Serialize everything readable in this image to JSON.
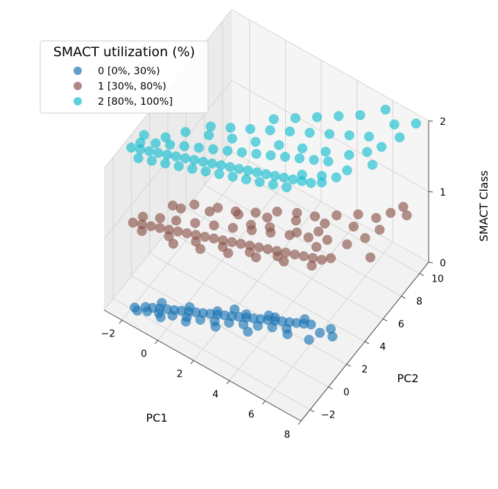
{
  "chart_data": {
    "type": "scatter3d",
    "title": "",
    "xlabel": "PC1",
    "ylabel": "PC2",
    "zlabel": "SMACT Class",
    "xlim": [
      -3,
      8
    ],
    "ylim": [
      -3,
      11
    ],
    "zlim": [
      0,
      2
    ],
    "x_ticks": [
      "−2",
      "0",
      "2",
      "4",
      "6",
      "8"
    ],
    "y_ticks": [
      "−2",
      "0",
      "2",
      "4",
      "6",
      "8",
      "10"
    ],
    "z_ticks": [
      "0",
      "1",
      "2"
    ],
    "grid": true,
    "legend": {
      "title": "SMACT utilization (%)",
      "placement": "top-left",
      "entries": [
        {
          "label": "0 [0%, 30%)",
          "color": "#1f77b4"
        },
        {
          "label": "1 [30%, 80%)",
          "color": "#8c564b"
        },
        {
          "label": "2 [80%, 100%]",
          "color": "#17becf"
        }
      ]
    },
    "series": [
      {
        "name": "0 [0%, 30%)",
        "z": 0,
        "color": "#1f77b4",
        "points": [
          [
            -1.9,
            -1.8
          ],
          [
            -1.5,
            -1.4
          ],
          [
            -1.2,
            -1.2
          ],
          [
            -0.9,
            -1.0
          ],
          [
            -0.6,
            -0.8
          ],
          [
            -0.3,
            -0.6
          ],
          [
            0.0,
            -0.4
          ],
          [
            0.3,
            -0.2
          ],
          [
            0.6,
            0.0
          ],
          [
            0.9,
            0.2
          ],
          [
            1.2,
            0.4
          ],
          [
            1.5,
            0.6
          ],
          [
            1.8,
            0.8
          ],
          [
            2.1,
            1.0
          ],
          [
            2.4,
            1.2
          ],
          [
            2.7,
            1.4
          ],
          [
            3.0,
            1.6
          ],
          [
            3.3,
            1.8
          ],
          [
            3.6,
            2.0
          ],
          [
            3.9,
            2.2
          ],
          [
            4.2,
            2.4
          ],
          [
            4.5,
            2.6
          ],
          [
            4.8,
            2.8
          ],
          [
            5.1,
            3.0
          ],
          [
            5.4,
            3.2
          ],
          [
            -1.7,
            -1.9
          ],
          [
            -1.3,
            -1.6
          ],
          [
            -0.8,
            -1.3
          ],
          [
            -0.2,
            -1.0
          ],
          [
            0.4,
            -0.6
          ],
          [
            1.0,
            -0.3
          ],
          [
            1.6,
            0.1
          ],
          [
            2.2,
            0.5
          ],
          [
            2.8,
            0.9
          ],
          [
            3.4,
            1.3
          ],
          [
            4.0,
            1.7
          ],
          [
            4.6,
            2.1
          ],
          [
            -1.0,
            -0.6
          ],
          [
            0.2,
            0.1
          ],
          [
            1.4,
            0.8
          ],
          [
            2.6,
            1.6
          ],
          [
            3.8,
            2.4
          ],
          [
            5.0,
            3.3
          ],
          [
            6.0,
            3.0
          ],
          [
            6.3,
            3.6
          ],
          [
            6.6,
            3.2
          ],
          [
            5.8,
            2.2
          ],
          [
            4.8,
            1.8
          ],
          [
            3.2,
            0.6
          ],
          [
            1.8,
            -0.2
          ],
          [
            0.5,
            -0.9
          ],
          [
            -0.6,
            -1.5
          ],
          [
            2.0,
            1.5
          ],
          [
            3.5,
            2.3
          ]
        ]
      },
      {
        "name": "1 [30%, 80%)",
        "z": 1,
        "color": "#8c564b",
        "points": [
          [
            -2.4,
            -1.0
          ],
          [
            -2.0,
            -0.8
          ],
          [
            -1.6,
            -0.6
          ],
          [
            -1.2,
            -0.4
          ],
          [
            -0.8,
            -0.2
          ],
          [
            -0.4,
            0.0
          ],
          [
            0.0,
            0.2
          ],
          [
            0.4,
            0.4
          ],
          [
            0.8,
            0.6
          ],
          [
            1.2,
            0.8
          ],
          [
            1.6,
            1.0
          ],
          [
            2.0,
            1.2
          ],
          [
            2.4,
            1.4
          ],
          [
            2.8,
            1.6
          ],
          [
            3.2,
            1.8
          ],
          [
            3.6,
            2.0
          ],
          [
            4.0,
            2.2
          ],
          [
            4.4,
            2.4
          ],
          [
            4.8,
            2.6
          ],
          [
            5.2,
            2.8
          ],
          [
            5.6,
            3.0
          ],
          [
            6.0,
            3.2
          ],
          [
            -2.2,
            -0.3
          ],
          [
            -1.5,
            0.2
          ],
          [
            -0.8,
            0.6
          ],
          [
            0.0,
            1.1
          ],
          [
            0.8,
            1.6
          ],
          [
            1.6,
            2.1
          ],
          [
            2.4,
            2.6
          ],
          [
            3.2,
            3.1
          ],
          [
            4.0,
            3.6
          ],
          [
            4.8,
            4.1
          ],
          [
            5.6,
            4.6
          ],
          [
            -1.0,
            1.5
          ],
          [
            0.2,
            2.3
          ],
          [
            1.4,
            3.1
          ],
          [
            2.6,
            3.9
          ],
          [
            3.8,
            4.7
          ],
          [
            5.0,
            5.5
          ],
          [
            6.2,
            6.3
          ],
          [
            -0.2,
            -0.9
          ],
          [
            1.0,
            -0.3
          ],
          [
            2.2,
            0.4
          ],
          [
            3.4,
            1.1
          ],
          [
            4.6,
            1.8
          ],
          [
            5.8,
            2.5
          ],
          [
            -1.8,
            -1.2
          ],
          [
            -0.6,
            -0.6
          ],
          [
            0.6,
            0.0
          ],
          [
            1.8,
            0.6
          ],
          [
            3.0,
            1.2
          ],
          [
            4.2,
            1.9
          ],
          [
            5.4,
            3.8
          ],
          [
            6.5,
            5.0
          ],
          [
            7.0,
            6.0
          ],
          [
            7.3,
            7.0
          ],
          [
            6.8,
            7.6
          ],
          [
            7.2,
            8.4
          ],
          [
            7.5,
            9.2
          ],
          [
            6.0,
            7.2
          ],
          [
            5.2,
            6.4
          ],
          [
            4.4,
            5.6
          ],
          [
            3.6,
            5.2
          ],
          [
            2.8,
            4.6
          ],
          [
            2.0,
            3.8
          ],
          [
            1.2,
            3.2
          ],
          [
            0.4,
            2.8
          ],
          [
            -0.6,
            2.2
          ],
          [
            -1.4,
            1.4
          ],
          [
            7.8,
            5.0
          ],
          [
            7.9,
            8.8
          ],
          [
            6.3,
            3.6
          ],
          [
            5.0,
            4.8
          ],
          [
            4.2,
            4.0
          ],
          [
            3.0,
            3.4
          ],
          [
            2.2,
            2.9
          ]
        ]
      },
      {
        "name": "2 [80%, 100%]",
        "z": 2,
        "color": "#17becf",
        "points": [
          [
            -2.6,
            -0.8
          ],
          [
            -2.2,
            -0.6
          ],
          [
            -1.8,
            -0.4
          ],
          [
            -1.4,
            -0.2
          ],
          [
            -1.0,
            0.0
          ],
          [
            -0.6,
            0.2
          ],
          [
            -0.2,
            0.4
          ],
          [
            0.2,
            0.6
          ],
          [
            0.6,
            0.8
          ],
          [
            1.0,
            1.0
          ],
          [
            1.4,
            1.2
          ],
          [
            1.8,
            1.4
          ],
          [
            2.2,
            1.6
          ],
          [
            2.6,
            1.8
          ],
          [
            3.0,
            2.0
          ],
          [
            3.4,
            2.2
          ],
          [
            3.8,
            2.4
          ],
          [
            4.2,
            2.6
          ],
          [
            4.6,
            2.8
          ],
          [
            5.0,
            3.0
          ],
          [
            5.4,
            3.2
          ],
          [
            -2.4,
            -0.2
          ],
          [
            -1.8,
            0.3
          ],
          [
            -1.2,
            0.7
          ],
          [
            -0.6,
            1.1
          ],
          [
            0.0,
            1.5
          ],
          [
            0.6,
            1.9
          ],
          [
            1.2,
            2.3
          ],
          [
            1.8,
            2.7
          ],
          [
            2.4,
            3.1
          ],
          [
            3.0,
            3.5
          ],
          [
            3.6,
            3.9
          ],
          [
            4.2,
            4.3
          ],
          [
            4.8,
            4.7
          ],
          [
            5.4,
            5.1
          ],
          [
            -2.0,
            -1.2
          ],
          [
            -1.4,
            -0.9
          ],
          [
            -0.8,
            -0.6
          ],
          [
            -0.2,
            -0.3
          ],
          [
            0.4,
            0.0
          ],
          [
            1.0,
            0.3
          ],
          [
            1.6,
            0.6
          ],
          [
            2.2,
            0.9
          ],
          [
            2.8,
            1.2
          ],
          [
            3.4,
            1.5
          ],
          [
            4.0,
            1.8
          ],
          [
            4.6,
            2.1
          ],
          [
            -1.0,
            2.0
          ],
          [
            0.0,
            2.6
          ],
          [
            1.0,
            3.2
          ],
          [
            2.0,
            3.8
          ],
          [
            3.0,
            4.4
          ],
          [
            4.0,
            5.0
          ],
          [
            5.0,
            5.6
          ],
          [
            6.0,
            6.2
          ],
          [
            6.6,
            7.0
          ],
          [
            7.0,
            7.8
          ],
          [
            6.2,
            8.0
          ],
          [
            5.4,
            7.4
          ],
          [
            4.6,
            6.8
          ],
          [
            3.8,
            6.2
          ],
          [
            3.0,
            5.6
          ],
          [
            2.2,
            5.0
          ],
          [
            1.4,
            4.4
          ],
          [
            0.6,
            3.8
          ],
          [
            -0.2,
            3.2
          ],
          [
            7.4,
            9.0
          ],
          [
            6.8,
            9.6
          ],
          [
            6.0,
            10.2
          ],
          [
            7.6,
            10.4
          ],
          [
            5.2,
            9.0
          ],
          [
            4.4,
            8.2
          ],
          [
            3.6,
            7.4
          ],
          [
            2.8,
            6.6
          ],
          [
            2.0,
            5.8
          ],
          [
            5.8,
            3.6
          ],
          [
            6.2,
            4.4
          ],
          [
            5.6,
            4.0
          ],
          [
            4.8,
            3.4
          ],
          [
            6.4,
            5.2
          ],
          [
            7.2,
            6.4
          ],
          [
            -2.5,
            0.4
          ],
          [
            -1.6,
            1.0
          ]
        ]
      }
    ]
  }
}
